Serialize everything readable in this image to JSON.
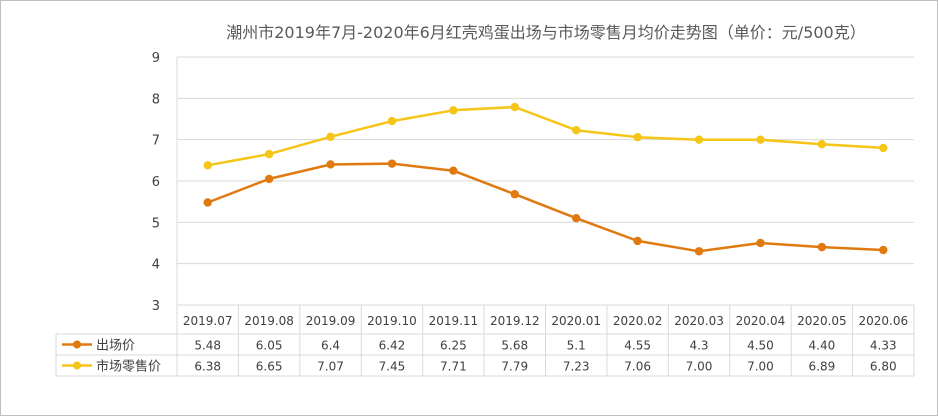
{
  "chart_data": {
    "type": "line",
    "title": "潮州市2019年7月-2020年6月红壳鸡蛋出场与市场零售月均价走势图（单价：元/500克）",
    "categories": [
      "2019.07",
      "2019.08",
      "2019.09",
      "2019.10",
      "2019.11",
      "2019.12",
      "2020.01",
      "2020.02",
      "2020.03",
      "2020.04",
      "2020.05",
      "2020.06"
    ],
    "ylim": [
      3,
      9
    ],
    "yticks": [
      "3",
      "4",
      "5",
      "6",
      "7",
      "8",
      "9"
    ],
    "grid": true,
    "legend": "data-table",
    "series": [
      {
        "name": "出场价",
        "color": "#e07a10",
        "values": [
          5.48,
          6.05,
          6.4,
          6.42,
          6.25,
          5.68,
          5.1,
          4.55,
          4.3,
          4.5,
          4.4,
          4.33
        ],
        "labels": [
          "5.48",
          "6.05",
          "6.4",
          "6.42",
          "6.25",
          "5.68",
          "5.1",
          "4.55",
          "4.3",
          "4.50",
          "4.40",
          "4.33"
        ]
      },
      {
        "name": "市场零售价",
        "color": "#f5c518",
        "values": [
          6.38,
          6.65,
          7.07,
          7.45,
          7.71,
          7.79,
          7.23,
          7.06,
          7.0,
          7.0,
          6.89,
          6.8
        ],
        "labels": [
          "6.38",
          "6.65",
          "7.07",
          "7.45",
          "7.71",
          "7.79",
          "7.23",
          "7.06",
          "7.00",
          "7.00",
          "6.89",
          "6.80"
        ]
      }
    ]
  }
}
